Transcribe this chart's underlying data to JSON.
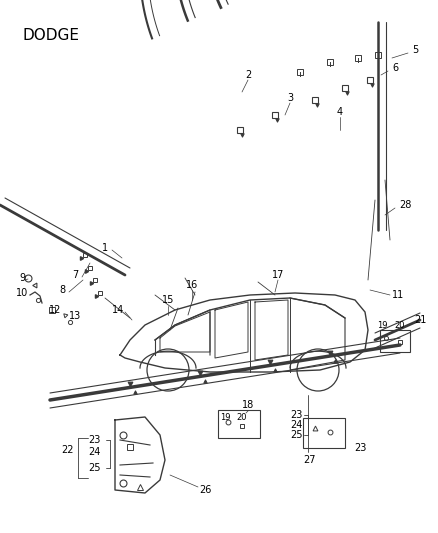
{
  "title": "DODGE",
  "bg_color": "#ffffff",
  "lc": "#3a3a3a",
  "tc": "#000000",
  "fig_width": 4.38,
  "fig_height": 5.33,
  "dpi": 100
}
